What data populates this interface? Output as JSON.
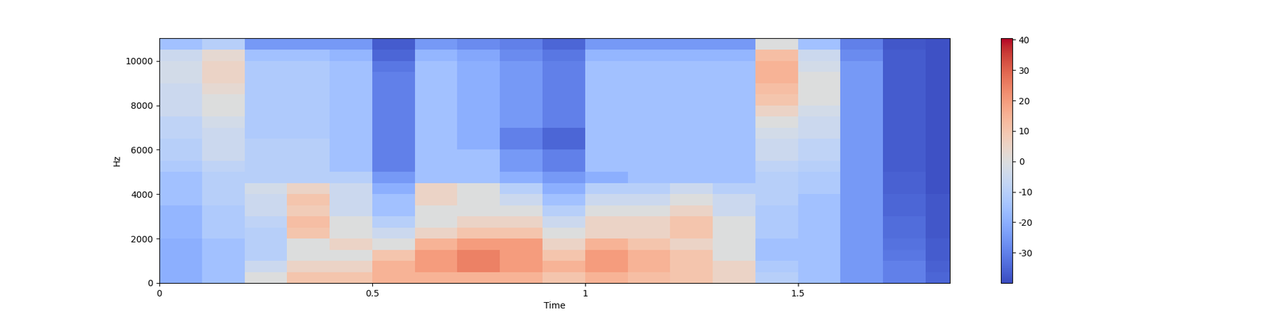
{
  "chart_data": {
    "type": "heatmap",
    "x_label": "Time",
    "y_label": "Hz",
    "xlim": [
      0,
      1.857
    ],
    "xticks": [
      0,
      0.5,
      1,
      1.5
    ],
    "ylim": [
      0,
      11025
    ],
    "yticks": [
      0,
      2000,
      4000,
      6000,
      8000,
      10000
    ],
    "x_bins": [
      0,
      0.1,
      0.2,
      0.3,
      0.4,
      0.5,
      0.6,
      0.7,
      0.8,
      0.9,
      1.0,
      1.1,
      1.2,
      1.3,
      1.4,
      1.5,
      1.6,
      1.7,
      1.8,
      1.857
    ],
    "y_bins": [
      0,
      500,
      1000,
      1500,
      2000,
      2500,
      3000,
      3500,
      4000,
      4500,
      5000,
      5500,
      6000,
      6500,
      7000,
      7500,
      8000,
      8500,
      9000,
      9500,
      10000,
      10500,
      11025
    ],
    "cells": [
      [
        -20,
        -15,
        0,
        10,
        10,
        15,
        15,
        15,
        15,
        10,
        15,
        12,
        10,
        5,
        -10,
        -15,
        -25,
        -30,
        -35
      ],
      [
        -20,
        -15,
        -5,
        5,
        5,
        15,
        20,
        25,
        20,
        15,
        20,
        15,
        10,
        5,
        -12,
        -15,
        -25,
        -30,
        -36
      ],
      [
        -20,
        -15,
        -10,
        0,
        0,
        10,
        20,
        25,
        20,
        10,
        20,
        15,
        10,
        0,
        -15,
        -15,
        -25,
        -32,
        -37
      ],
      [
        -20,
        -15,
        -10,
        0,
        5,
        0,
        15,
        20,
        20,
        5,
        15,
        10,
        5,
        0,
        -15,
        -15,
        -25,
        -33,
        -37
      ],
      [
        -18,
        -12,
        -10,
        10,
        0,
        -5,
        5,
        10,
        10,
        0,
        5,
        5,
        10,
        0,
        -12,
        -15,
        -25,
        -34,
        -38
      ],
      [
        -18,
        -12,
        -8,
        12,
        0,
        -10,
        0,
        5,
        5,
        -5,
        5,
        5,
        10,
        0,
        -12,
        -15,
        -25,
        -34,
        -38
      ],
      [
        -18,
        -12,
        -5,
        8,
        -5,
        -15,
        0,
        0,
        0,
        -10,
        0,
        0,
        5,
        -5,
        -12,
        -15,
        -25,
        -35,
        -38
      ],
      [
        -15,
        -10,
        -5,
        10,
        -5,
        -15,
        5,
        0,
        -5,
        -15,
        -5,
        -5,
        0,
        -5,
        -10,
        -15,
        -25,
        -35,
        -38
      ],
      [
        -15,
        -10,
        -3,
        5,
        -5,
        -20,
        5,
        0,
        -10,
        -20,
        -10,
        -10,
        -5,
        -10,
        -10,
        -12,
        -25,
        -36,
        -39
      ],
      [
        -15,
        -10,
        -10,
        -10,
        -10,
        -25,
        -15,
        -15,
        -20,
        -25,
        -20,
        -15,
        -15,
        -15,
        -10,
        -12,
        -25,
        -36,
        -39
      ],
      [
        -12,
        -8,
        -10,
        -10,
        -15,
        -30,
        -15,
        -15,
        -25,
        -30,
        -15,
        -15,
        -15,
        -15,
        -8,
        -10,
        -25,
        -37,
        -39
      ],
      [
        -10,
        -5,
        -10,
        -10,
        -15,
        -30,
        -15,
        -15,
        -25,
        -30,
        -15,
        -15,
        -15,
        -15,
        -5,
        -8,
        -25,
        -37,
        -39
      ],
      [
        -10,
        -5,
        -10,
        -10,
        -15,
        -30,
        -15,
        -20,
        -30,
        -35,
        -15,
        -15,
        -15,
        -15,
        -5,
        -8,
        -25,
        -37,
        -39
      ],
      [
        -8,
        -5,
        -12,
        -12,
        -15,
        -30,
        -15,
        -20,
        -30,
        -35,
        -15,
        -15,
        -15,
        -15,
        -3,
        -5,
        -25,
        -37,
        -39
      ],
      [
        -8,
        -3,
        -12,
        -12,
        -15,
        -30,
        -15,
        -20,
        -25,
        -30,
        -15,
        -15,
        -15,
        -15,
        0,
        -5,
        -25,
        -37,
        -39
      ],
      [
        -5,
        0,
        -12,
        -12,
        -15,
        -30,
        -15,
        -20,
        -25,
        -30,
        -15,
        -15,
        -15,
        -15,
        5,
        -3,
        -25,
        -37,
        -39
      ],
      [
        -5,
        0,
        -12,
        -12,
        -15,
        -30,
        -15,
        -20,
        -25,
        -30,
        -15,
        -15,
        -15,
        -15,
        10,
        0,
        -25,
        -37,
        -39
      ],
      [
        -5,
        3,
        -12,
        -12,
        -15,
        -30,
        -15,
        -20,
        -25,
        -30,
        -15,
        -15,
        -15,
        -15,
        12,
        0,
        -25,
        -37,
        -39
      ],
      [
        -3,
        5,
        -12,
        -12,
        -15,
        -30,
        -15,
        -20,
        -25,
        -30,
        -15,
        -15,
        -15,
        -15,
        15,
        0,
        -25,
        -37,
        -39
      ],
      [
        -3,
        5,
        -12,
        -12,
        -15,
        -32,
        -15,
        -20,
        -25,
        -30,
        -15,
        -15,
        -15,
        -15,
        15,
        -3,
        -25,
        -37,
        -39
      ],
      [
        -5,
        3,
        -15,
        -15,
        -18,
        -35,
        -18,
        -22,
        -28,
        -32,
        -18,
        -18,
        -18,
        -18,
        12,
        -5,
        -28,
        -37,
        -39
      ],
      [
        -15,
        -10,
        -25,
        -25,
        -25,
        -37,
        -25,
        -28,
        -30,
        -35,
        -25,
        -25,
        -25,
        -25,
        0,
        -15,
        -30,
        -38,
        -39
      ]
    ],
    "colorbar": {
      "range": [
        -40,
        40.5
      ],
      "ticks": [
        -30,
        -20,
        -10,
        0,
        10,
        20,
        30,
        40
      ]
    }
  }
}
